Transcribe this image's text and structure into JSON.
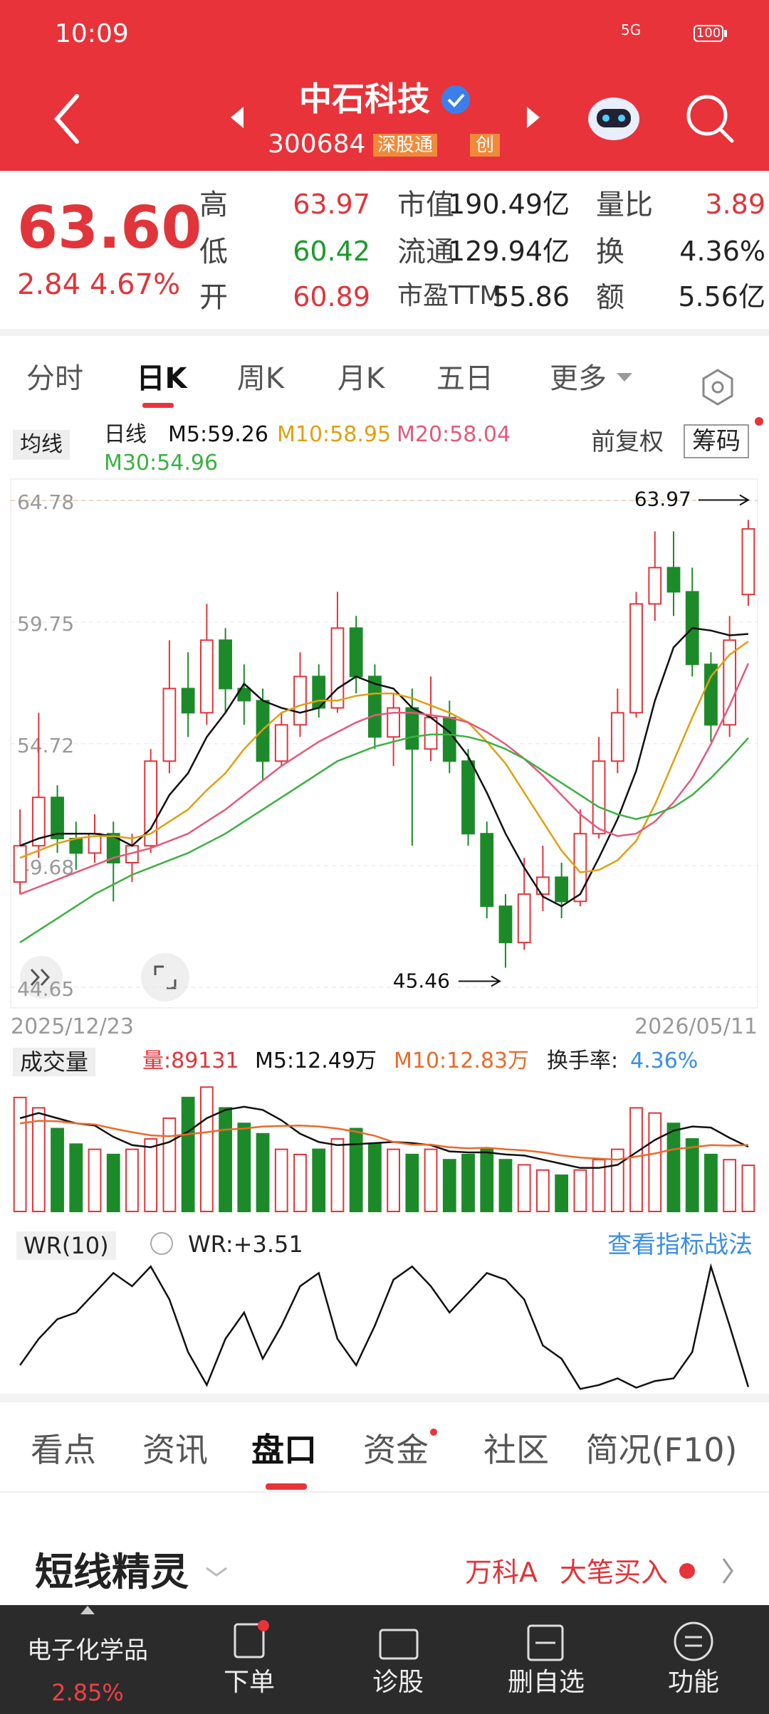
{
  "status_bar": {
    "time": "10:09",
    "network": "5G",
    "battery": "100"
  },
  "header": {
    "title": "中石科技",
    "code": "300684",
    "tags": [
      "深股通",
      "创"
    ]
  },
  "quote": {
    "price": "63.60",
    "change": "2.84",
    "change_pct": "4.67%",
    "stats": [
      {
        "label": "高",
        "value": "63.97",
        "color": "#e0353b"
      },
      {
        "label": "低",
        "value": "60.42",
        "color": "#1d9a2c"
      },
      {
        "label": "开",
        "value": "60.89",
        "color": "#e0353b"
      },
      {
        "label": "市值",
        "value": "190.49亿",
        "color": "#222222"
      },
      {
        "label": "流通",
        "value": "129.94亿",
        "color": "#222222"
      },
      {
        "label": "市盈TTM",
        "value": "55.86",
        "color": "#222222"
      },
      {
        "label": "量比",
        "value": "3.89",
        "color": "#e0353b"
      },
      {
        "label": "换",
        "value": "4.36%",
        "color": "#222222"
      },
      {
        "label": "额",
        "value": "5.56亿",
        "color": "#222222"
      }
    ]
  },
  "period_tabs": [
    "分时",
    "日K",
    "周K",
    "月K",
    "五日",
    "更多"
  ],
  "chart_info": {
    "ma_button": "均线",
    "line_type": "日线",
    "adjust": "前复权",
    "chips": "筹码",
    "mas": [
      {
        "label": "M5:59.26",
        "color": "#111111",
        "values": [
          50.5,
          50.8,
          51,
          51,
          51,
          50.9,
          50.5,
          51.2,
          52.6,
          53.5,
          55,
          56,
          57.2,
          56.5,
          56.2,
          56,
          56.2,
          57,
          57.5,
          57.2,
          57,
          56.2,
          55.8,
          55.2,
          54.2,
          52.7,
          51,
          49.6,
          48.4,
          48,
          48.5,
          50,
          51.6,
          53.6,
          56.5,
          58.7,
          59.5,
          59.4,
          59.2,
          59.26
        ]
      },
      {
        "label": "M10:58.95",
        "color": "#e0a010",
        "values": [
          50,
          50.3,
          50.6,
          50.8,
          50.9,
          50.9,
          50.8,
          51,
          51.5,
          52,
          52.8,
          53.5,
          54.5,
          55.3,
          56,
          56.3,
          56.5,
          56.5,
          56.7,
          56.8,
          56.8,
          56.6,
          56.3,
          56,
          55.6,
          54.8,
          53.9,
          52.7,
          51.5,
          50.3,
          49.4,
          49.5,
          49.9,
          50.7,
          52.2,
          54,
          55.8,
          57.5,
          58.4,
          58.95
        ]
      },
      {
        "label": "M20:58.04",
        "color": "#e25a7c",
        "values": [
          48.5,
          48.8,
          49.1,
          49.4,
          49.7,
          50,
          50.2,
          50.4,
          50.7,
          51,
          51.5,
          52,
          52.6,
          53.2,
          53.8,
          54.3,
          54.8,
          55.2,
          55.6,
          55.9,
          56,
          56,
          55.9,
          55.8,
          55.6,
          55.2,
          54.7,
          54.1,
          53.4,
          52.6,
          51.8,
          51.2,
          50.9,
          51,
          51.5,
          52.3,
          53.3,
          54.7,
          56.3,
          58.04
        ]
      },
      {
        "label": "M30:54.96",
        "color": "#3cb043",
        "values": [
          46.5,
          47,
          47.5,
          48,
          48.5,
          48.9,
          49.3,
          49.6,
          49.9,
          50.2,
          50.6,
          51,
          51.5,
          52,
          52.5,
          53,
          53.5,
          54,
          54.3,
          54.6,
          54.8,
          55,
          55.1,
          55.1,
          55,
          54.8,
          54.5,
          54.1,
          53.6,
          53.1,
          52.6,
          52.1,
          51.8,
          51.6,
          51.8,
          52.1,
          52.6,
          53.3,
          54.1,
          54.96
        ]
      }
    ]
  },
  "kline": {
    "ylim": [
      44.65,
      64.78
    ],
    "yticks": [
      64.78,
      59.75,
      54.72,
      49.68,
      44.65
    ],
    "grid": true,
    "up_color": "#e0353b",
    "down_color": "#1d8a2a",
    "high_label": 63.97,
    "low_label": 45.46,
    "start_date": "2025/12/23",
    "end_date": "2026/05/11",
    "candles": [
      [
        49,
        50.5,
        52,
        48.5
      ],
      [
        50.5,
        52.5,
        56,
        50
      ],
      [
        52.5,
        50.8,
        53,
        50.2
      ],
      [
        50.8,
        50.2,
        51.5,
        49.5
      ],
      [
        50.2,
        51,
        51.8,
        49.8
      ],
      [
        51,
        49.8,
        51.5,
        48.2
      ],
      [
        49.8,
        50.5,
        51,
        49
      ],
      [
        50.5,
        54,
        54.5,
        50.2
      ],
      [
        54,
        57,
        59,
        53.5
      ],
      [
        57,
        56,
        58.5,
        55
      ],
      [
        56,
        59,
        60.5,
        55.5
      ],
      [
        59,
        57,
        59.5,
        56
      ],
      [
        57,
        56.5,
        58,
        55.5
      ],
      [
        56.5,
        54,
        57,
        53.2
      ],
      [
        54,
        55.5,
        56,
        53.8
      ],
      [
        55.5,
        57.5,
        58.5,
        55
      ],
      [
        57.5,
        56.2,
        58,
        55.8
      ],
      [
        56.2,
        59.5,
        61,
        56
      ],
      [
        59.5,
        57.5,
        60,
        56.8
      ],
      [
        57.5,
        55,
        58,
        54.5
      ],
      [
        55,
        56.2,
        56.8,
        53.8
      ],
      [
        56.2,
        54.5,
        57,
        50.5
      ],
      [
        54.5,
        55.8,
        57.5,
        54
      ],
      [
        55.8,
        54,
        56.5,
        53.5
      ],
      [
        54,
        51,
        54.5,
        50.5
      ],
      [
        51,
        48,
        51.5,
        47.5
      ],
      [
        48,
        46.5,
        48.5,
        45.46
      ],
      [
        46.5,
        48.5,
        50,
        46.2
      ],
      [
        48.5,
        49.2,
        50.5,
        47.8
      ],
      [
        49.2,
        48.2,
        49.8,
        47.5
      ],
      [
        48.2,
        51,
        52,
        48
      ],
      [
        51,
        54,
        55,
        50.8
      ],
      [
        54,
        56,
        57,
        53.5
      ],
      [
        56,
        60.5,
        61,
        55.8
      ],
      [
        60.5,
        62,
        63.5,
        59.8
      ],
      [
        62,
        61,
        63.5,
        60
      ],
      [
        61,
        58,
        62,
        57.5
      ],
      [
        58,
        55.5,
        58.5,
        54.8
      ],
      [
        55.5,
        59,
        60,
        55
      ],
      [
        60.89,
        63.6,
        63.97,
        60.42
      ]
    ]
  },
  "volume": {
    "button": "成交量",
    "amount": "量:89131",
    "turnover_label": "换手率:",
    "turnover": "4.36%",
    "ylim": [
      0,
      25
    ],
    "values": [
      22,
      20,
      16,
      13,
      12,
      11,
      12,
      14,
      18,
      22,
      24,
      20,
      17,
      15,
      12,
      11,
      12,
      14,
      16,
      13,
      12,
      11,
      12,
      10,
      11,
      12,
      10,
      9,
      8,
      7,
      8,
      10,
      12,
      20,
      19,
      17,
      14,
      11,
      10,
      8.9131
    ],
    "mas": [
      {
        "label": "M5:12.49万",
        "color": "#111111",
        "values": [
          18,
          19,
          18,
          17,
          16.6,
          14.4,
          12.8,
          12.4,
          13.4,
          15.4,
          18,
          19.6,
          20.2,
          19.6,
          17.6,
          15,
          13.4,
          12.8,
          13,
          13.2,
          13.4,
          13.2,
          12.8,
          11.6,
          11.4,
          11.4,
          11,
          10.8,
          10,
          9.2,
          8.4,
          8.4,
          9,
          11.4,
          13.8,
          15.6,
          16.4,
          16.2,
          14.2,
          12.49
        ]
      },
      {
        "label": "M10:12.83万",
        "color": "#ea6a2a",
        "values": [
          17,
          17.5,
          17.4,
          17,
          16.8,
          16,
          15.3,
          14.7,
          14.5,
          14.9,
          15.3,
          15.8,
          16,
          16.4,
          16.5,
          16.6,
          16.4,
          16,
          15.4,
          14.6,
          13.4,
          12.9,
          12.9,
          12.4,
          12.2,
          12.3,
          12,
          11.8,
          11.4,
          10.8,
          10.4,
          10.2,
          10,
          10.6,
          11.2,
          12,
          12.4,
          12.8,
          12.7,
          12.83
        ]
      }
    ]
  },
  "wr": {
    "button": "WR(10)",
    "label": "WR:+3.51",
    "link": "查看指标战法",
    "ylim": [
      0,
      100
    ],
    "color": "#111111",
    "values": [
      20,
      40,
      55,
      60,
      75,
      90,
      80,
      95,
      70,
      30,
      5,
      40,
      60,
      25,
      50,
      80,
      90,
      40,
      20,
      50,
      85,
      95,
      80,
      60,
      75,
      90,
      85,
      70,
      35,
      25,
      2,
      5,
      10,
      3,
      8,
      10,
      30,
      95,
      50,
      3.51
    ]
  },
  "bottom_tabs": [
    "看点",
    "资讯",
    "盘口",
    "资金",
    "社区",
    "简况(F10)"
  ],
  "sprite": {
    "title": "短线精灵",
    "stock": "万科A",
    "event": "大笔买入"
  },
  "nav": {
    "sector": "电子化学品",
    "sector_change": "2.85%",
    "items": [
      "下单",
      "诊股",
      "删自选",
      "功能"
    ]
  }
}
